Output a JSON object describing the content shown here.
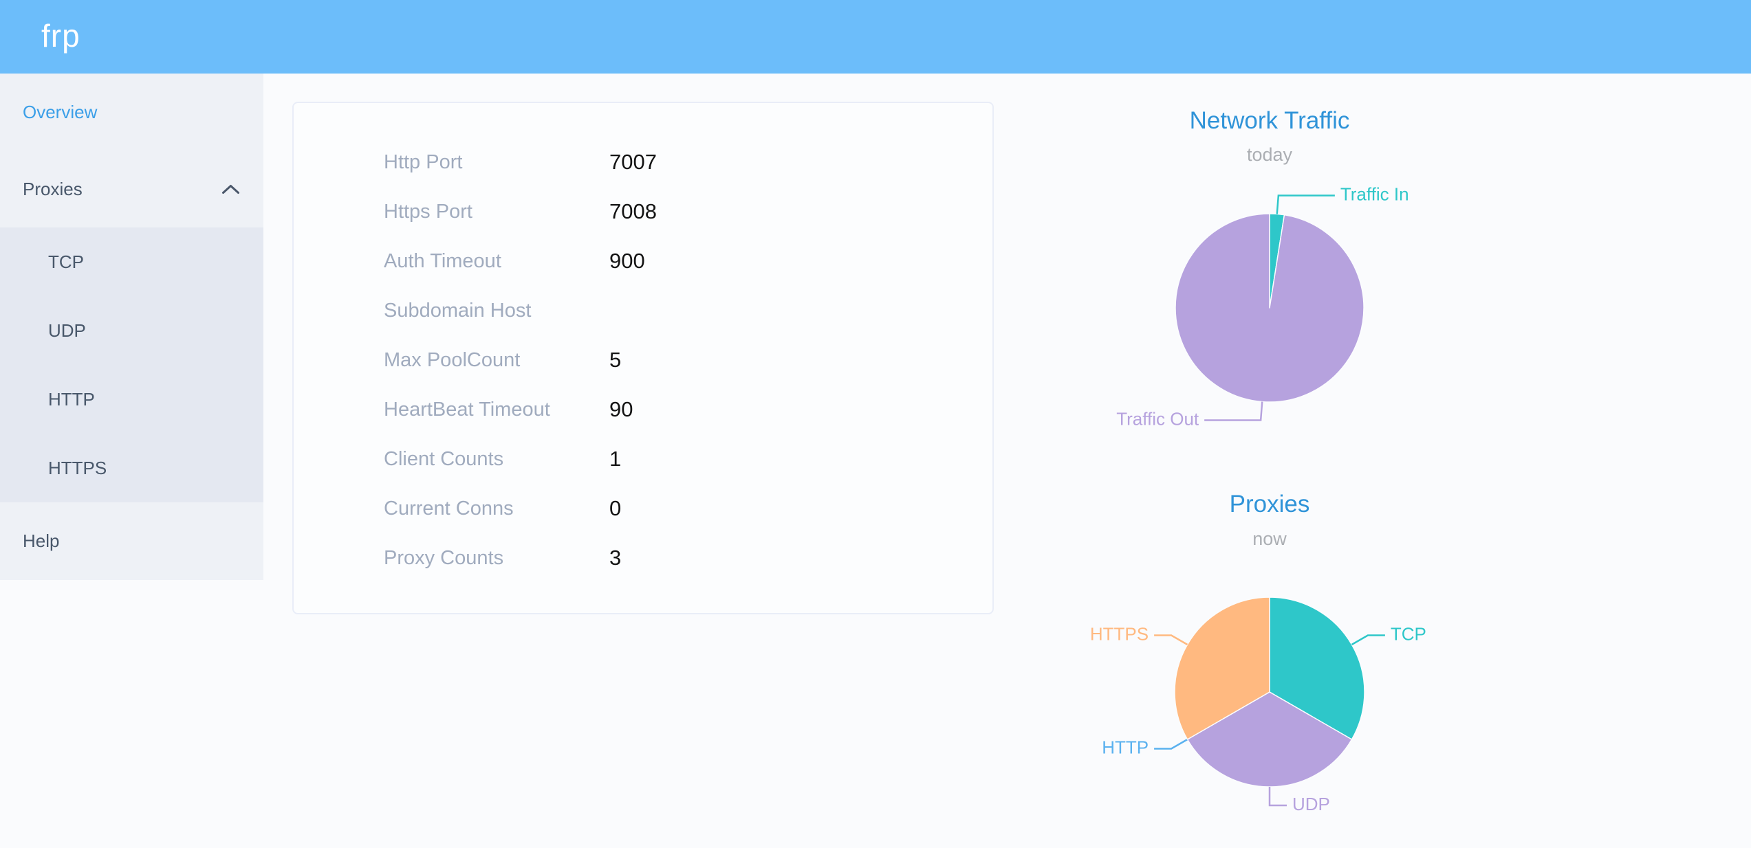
{
  "app": {
    "logo_text": "frp"
  },
  "sidebar": {
    "overview": "Overview",
    "proxies": "Proxies",
    "proxies_children": {
      "tcp": "TCP",
      "udp": "UDP",
      "http": "HTTP",
      "https": "HTTPS"
    },
    "help": "Help"
  },
  "server_info": {
    "rows": [
      {
        "label": "Http Port",
        "value": "7007"
      },
      {
        "label": "Https Port",
        "value": "7008"
      },
      {
        "label": "Auth Timeout",
        "value": "900"
      },
      {
        "label": "Subdomain Host",
        "value": ""
      },
      {
        "label": "Max PoolCount",
        "value": "5"
      },
      {
        "label": "HeartBeat Timeout",
        "value": "90"
      },
      {
        "label": "Client Counts",
        "value": "1"
      },
      {
        "label": "Current Conns",
        "value": "0"
      },
      {
        "label": "Proxy Counts",
        "value": "3"
      }
    ]
  },
  "chart_data": [
    {
      "type": "pie",
      "title": "Network Traffic",
      "subtitle": "today",
      "labels_position": "outside-callout",
      "value_unit": "percent (estimated from slice angles)",
      "slices": [
        {
          "label": "Traffic In",
          "value": 2.5,
          "color": "#2ec7c9"
        },
        {
          "label": "Traffic Out",
          "value": 97.5,
          "color": "#b6a2de"
        }
      ]
    },
    {
      "type": "pie",
      "title": "Proxies",
      "subtitle": "now",
      "labels_position": "outside-callout",
      "value_unit": "proxy count",
      "slices": [
        {
          "label": "TCP",
          "value": 1,
          "color": "#2ec7c9"
        },
        {
          "label": "UDP",
          "value": 1,
          "color": "#b6a2de"
        },
        {
          "label": "HTTP",
          "value": 0,
          "color": "#5ab1ef"
        },
        {
          "label": "HTTPS",
          "value": 1,
          "color": "#ffb980"
        }
      ]
    }
  ],
  "colors": {
    "header_bg": "#6cbdfa",
    "sidebar_bg": "#eef1f6",
    "submenu_bg": "#e4e8f1",
    "menu_text": "#48576a",
    "active_menu": "#3b9fe8",
    "chart_title": "#2f93d8",
    "teal": "#2ec7c9",
    "purple": "#b6a2de",
    "blue": "#5ab1ef",
    "orange": "#ffb980"
  }
}
